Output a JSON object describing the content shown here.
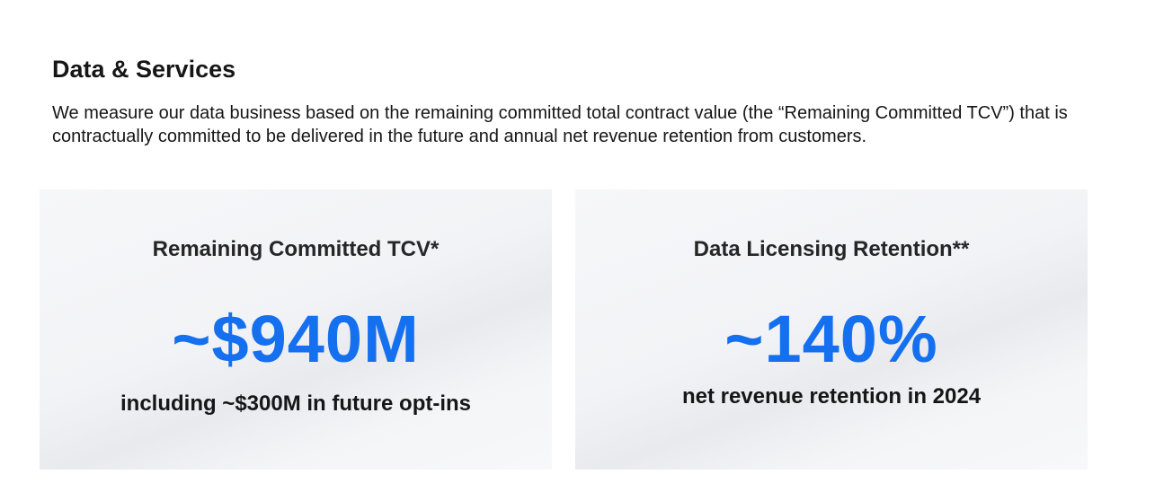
{
  "section": {
    "title": "Data & Services",
    "description": "We measure our data business based on the remaining committed total contract value (the “Remaining Committed TCV”) that is contractually committed to be delivered in the future and annual net revenue retention from customers."
  },
  "cards": [
    {
      "title": "Remaining Committed TCV*",
      "value": "~$940M",
      "caption": "including ~$300M in future opt-ins"
    },
    {
      "title": "Data Licensing Retention**",
      "value": "~140%",
      "caption": "net revenue retention in 2024"
    }
  ],
  "colors": {
    "accent": "#1570ef",
    "text": "#161616",
    "card_background": "#f4f5f7"
  }
}
